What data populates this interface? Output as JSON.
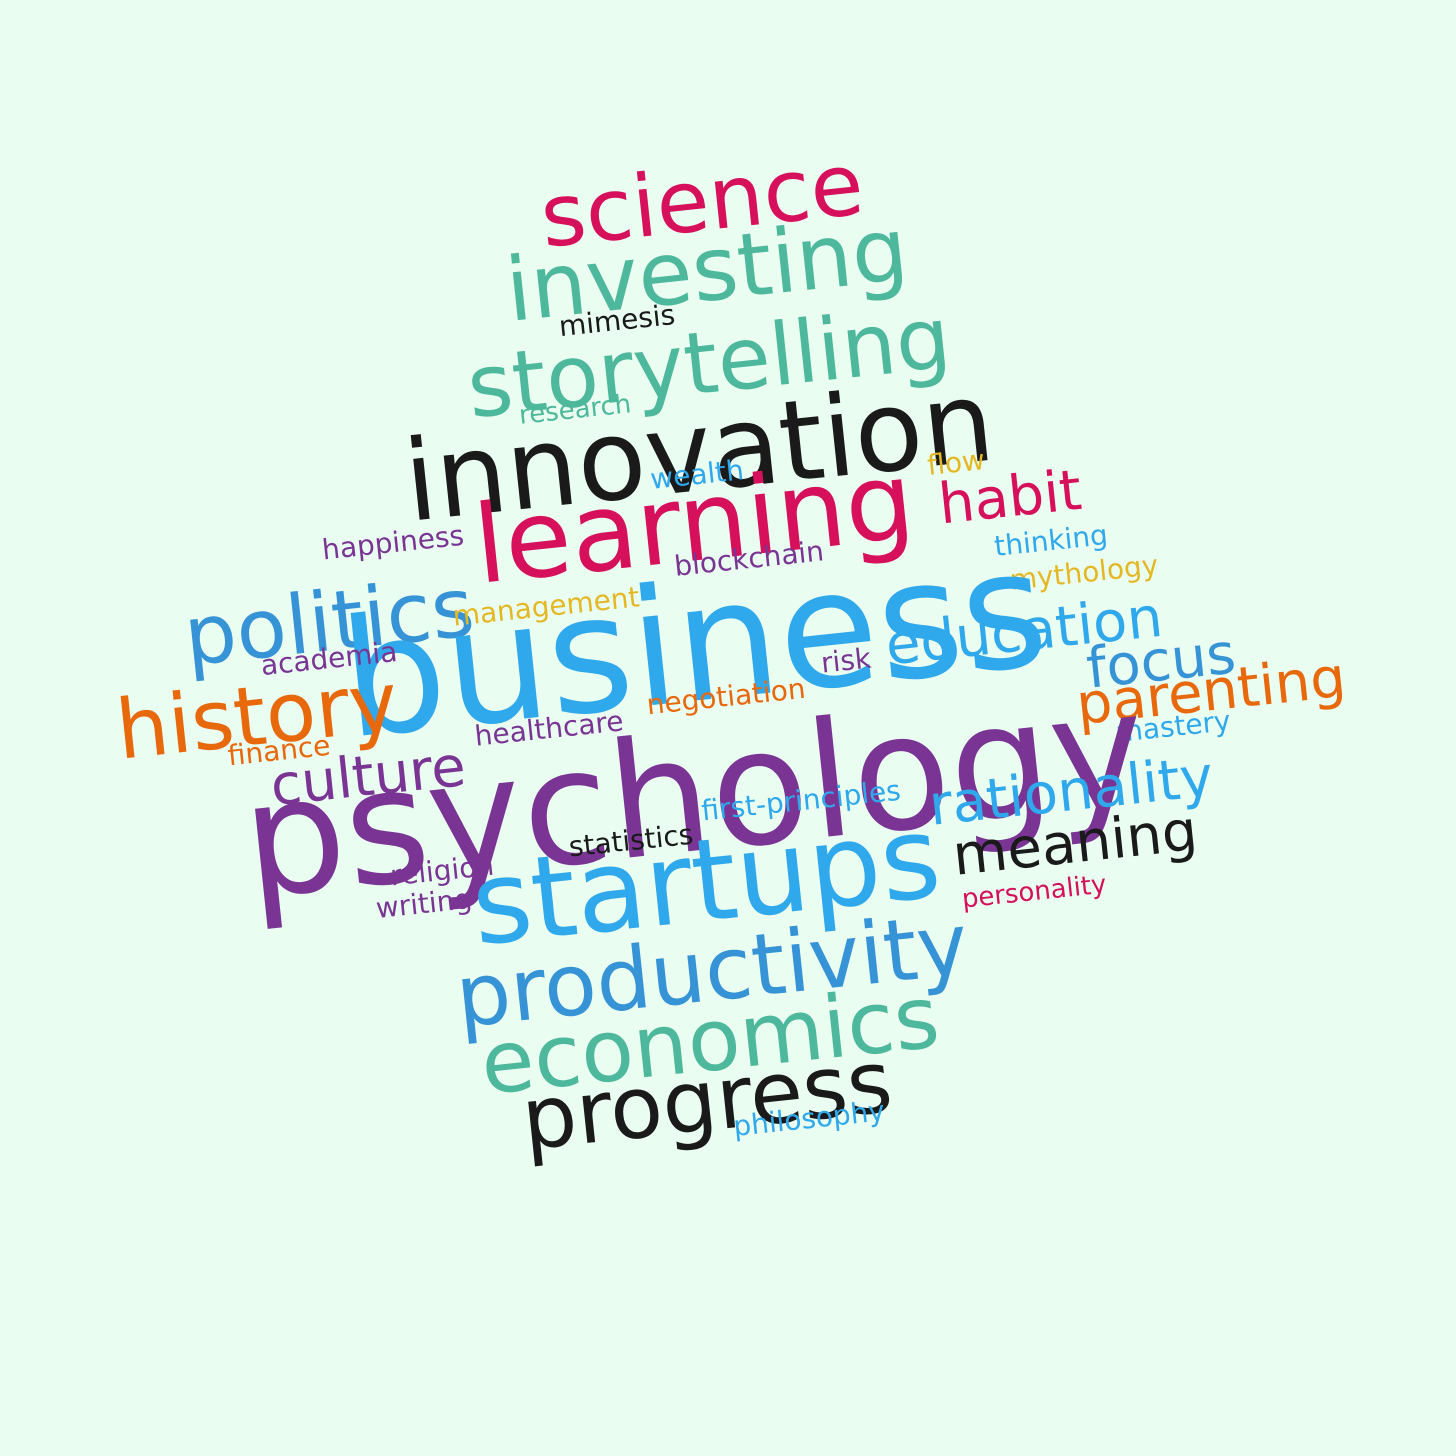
{
  "background_color": "#e9fdf1",
  "palette": {
    "crimson": "#d6105a",
    "teal": "#4db89b",
    "black": "#1a1a1a",
    "blue": "#2fa8ec",
    "steel": "#3593d6",
    "purple": "#7a3594",
    "orange": "#e8680c",
    "gold": "#e4b824"
  },
  "words": [
    {
      "text": "science",
      "color": "crimson"
    },
    {
      "text": "investing",
      "color": "teal"
    },
    {
      "text": "mimesis",
      "color": "black"
    },
    {
      "text": "storytelling",
      "color": "teal"
    },
    {
      "text": "research",
      "color": "teal"
    },
    {
      "text": "innovation",
      "color": "black"
    },
    {
      "text": "wealth",
      "color": "blue"
    },
    {
      "text": "flow",
      "color": "gold"
    },
    {
      "text": "learning",
      "color": "crimson"
    },
    {
      "text": "habit",
      "color": "crimson"
    },
    {
      "text": "happiness",
      "color": "purple"
    },
    {
      "text": "thinking",
      "color": "blue"
    },
    {
      "text": "blockchain",
      "color": "purple"
    },
    {
      "text": "mythology",
      "color": "gold"
    },
    {
      "text": "politics",
      "color": "steel"
    },
    {
      "text": "business",
      "color": "blue"
    },
    {
      "text": "management",
      "color": "gold"
    },
    {
      "text": "education",
      "color": "blue"
    },
    {
      "text": "academia",
      "color": "purple"
    },
    {
      "text": "focus",
      "color": "steel"
    },
    {
      "text": "risk",
      "color": "purple"
    },
    {
      "text": "parenting",
      "color": "orange"
    },
    {
      "text": "history",
      "color": "orange"
    },
    {
      "text": "negotiation",
      "color": "orange"
    },
    {
      "text": "mastery",
      "color": "blue"
    },
    {
      "text": "healthcare",
      "color": "purple"
    },
    {
      "text": "finance",
      "color": "orange"
    },
    {
      "text": "culture",
      "color": "purple"
    },
    {
      "text": "psychology",
      "color": "purple"
    },
    {
      "text": "rationality",
      "color": "blue"
    },
    {
      "text": "first-principles",
      "color": "blue"
    },
    {
      "text": "statistics",
      "color": "black"
    },
    {
      "text": "meaning",
      "color": "black"
    },
    {
      "text": "startups",
      "color": "blue"
    },
    {
      "text": "religion",
      "color": "purple"
    },
    {
      "text": "personality",
      "color": "crimson"
    },
    {
      "text": "writing",
      "color": "purple"
    },
    {
      "text": "productivity",
      "color": "steel"
    },
    {
      "text": "economics",
      "color": "teal"
    },
    {
      "text": "progress",
      "color": "black"
    },
    {
      "text": "philosophy",
      "color": "blue"
    }
  ]
}
